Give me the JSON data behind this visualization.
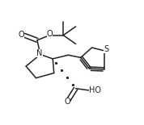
{
  "bg_color": "#ffffff",
  "line_color": "#222222",
  "line_width": 1.1,
  "figsize": [
    1.78,
    1.55
  ],
  "dpi": 100,
  "xlim": [
    0.0,
    1.0
  ],
  "ylim": [
    0.0,
    1.0
  ]
}
